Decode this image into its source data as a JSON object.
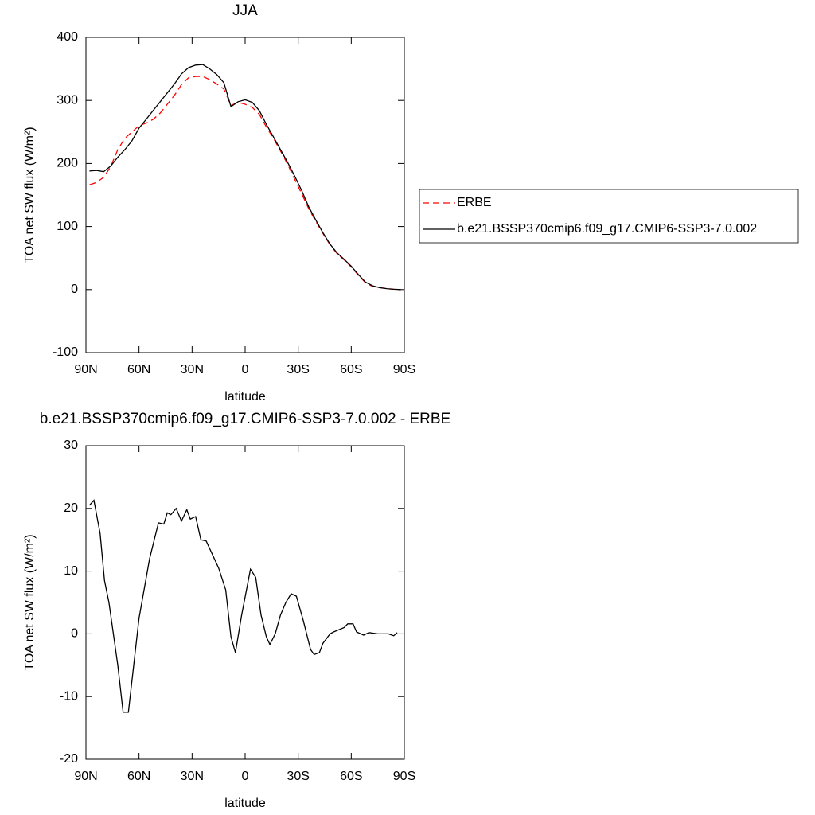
{
  "chart_data": [
    {
      "type": "line",
      "title": "JJA",
      "xlabel": "latitude",
      "ylabel": "TOA net SW flux (W/m²)",
      "xlim": [
        90,
        -90
      ],
      "xticks": [
        {
          "value": 90,
          "label": "90N"
        },
        {
          "value": 60,
          "label": "60N"
        },
        {
          "value": 30,
          "label": "30N"
        },
        0,
        {
          "value": -30,
          "label": "30S"
        },
        {
          "value": -60,
          "label": "60S"
        },
        {
          "value": -90,
          "label": "90S"
        }
      ],
      "ylim": [
        -100,
        400
      ],
      "yticks": [
        -100,
        0,
        100,
        200,
        300,
        400
      ],
      "legend": "right",
      "x": [
        88,
        84,
        80,
        76,
        72,
        68,
        64,
        60,
        56,
        52,
        48,
        44,
        40,
        36,
        32,
        28,
        24,
        20,
        16,
        12,
        8,
        4,
        0,
        -4,
        -8,
        -12,
        -16,
        -20,
        -24,
        -28,
        -32,
        -36,
        -40,
        -44,
        -48,
        -52,
        -56,
        -60,
        -64,
        -68,
        -72,
        -76,
        -80,
        -84,
        -88
      ],
      "series": [
        {
          "name": "ERBE",
          "color": "#ff0000",
          "dash": "dashed",
          "values": [
            166,
            170,
            178,
            195,
            222,
            240,
            250,
            260,
            264,
            270,
            280,
            294,
            308,
            325,
            336,
            338,
            338,
            333,
            326,
            318,
            292,
            297,
            294,
            289,
            278,
            258,
            240,
            220,
            199,
            175,
            152,
            128,
            108,
            89,
            71,
            57,
            47,
            36,
            23,
            11,
            5,
            3,
            1.5,
            0.5,
            0
          ]
        },
        {
          "name": "b.e21.BSSP370cmip6.f09_g17.CMIP6-SSP3-7.0.002",
          "color": "#000000",
          "dash": "solid",
          "values": [
            188,
            189,
            187,
            196,
            210,
            222,
            236,
            256,
            270,
            284,
            298,
            312,
            326,
            342,
            352,
            356,
            357,
            350,
            341,
            328,
            290,
            298,
            301,
            297,
            284,
            262,
            242,
            222,
            202,
            180,
            157,
            131,
            110,
            90,
            72,
            58,
            48,
            37,
            24,
            12,
            6,
            3,
            1.5,
            0.5,
            0
          ]
        }
      ]
    },
    {
      "type": "line",
      "title": "b.e21.BSSP370cmip6.f09_g17.CMIP6-SSP3-7.0.002 - ERBE",
      "xlabel": "latitude",
      "ylabel": "TOA net SW flux (W/m²)",
      "xlim": [
        90,
        -90
      ],
      "xticks": [
        {
          "value": 90,
          "label": "90N"
        },
        {
          "value": 60,
          "label": "60N"
        },
        {
          "value": 30,
          "label": "30N"
        },
        0,
        {
          "value": -30,
          "label": "30S"
        },
        {
          "value": -60,
          "label": "60S"
        },
        {
          "value": -90,
          "label": "90S"
        }
      ],
      "ylim": [
        -20,
        30
      ],
      "yticks": [
        -20,
        -10,
        0,
        10,
        20,
        30
      ],
      "x": [
        88,
        85.5,
        82,
        79.5,
        77,
        72,
        69,
        66,
        60,
        54,
        49,
        46,
        44,
        42,
        39,
        36,
        33,
        31,
        28,
        25,
        22,
        15,
        11,
        8,
        5.5,
        2,
        -3,
        -6,
        -9,
        -12,
        -14,
        -17,
        -20,
        -23,
        -26,
        -29,
        -33,
        -37,
        -39,
        -42,
        -44,
        -48,
        -50,
        -56,
        -58,
        -61,
        -63,
        -67,
        -70,
        -75,
        -78,
        -81,
        -84,
        -86
      ],
      "series": [
        {
          "color": "#000000",
          "dash": "solid",
          "values": [
            20.5,
            21.3,
            16,
            8.5,
            5,
            -5,
            -12.5,
            -12.5,
            2.5,
            12,
            17.7,
            17.5,
            19.3,
            19,
            20,
            18,
            19.8,
            18.3,
            18.7,
            15,
            14.8,
            10.5,
            7,
            -0.5,
            -3,
            3,
            10.3,
            9,
            3,
            -0.5,
            -1.7,
            0,
            3,
            5,
            6.4,
            6,
            2,
            -2.5,
            -3.3,
            -3,
            -1.5,
            0,
            0.3,
            1,
            1.6,
            1.6,
            0.3,
            -0.2,
            0.2,
            0,
            0,
            0,
            -0.3,
            0.2
          ]
        }
      ]
    }
  ]
}
